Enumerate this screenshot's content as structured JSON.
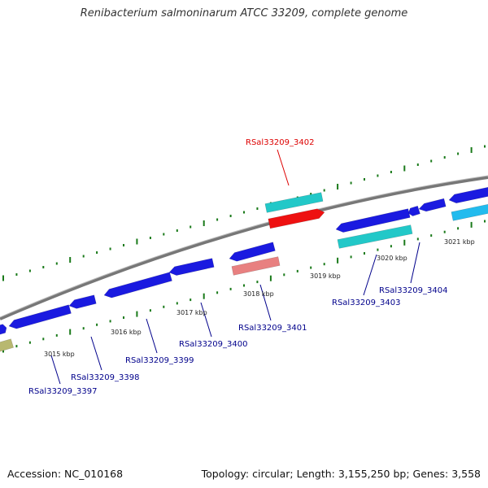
{
  "title": "Renibacterium salmoninarum ATCC 33209, complete genome",
  "footer": {
    "accession": "Accession: NC_010168",
    "topology": "Topology: circular; Length: 3,155,250 bp; Genes: 3,558"
  },
  "colors": {
    "cds_forward": "#1a1ae0",
    "cds_reverse": "#1a1ae0",
    "rna": "#22c8c8",
    "rrna_highlight": "#ee1111",
    "pseudo": "#e88080",
    "other": "#b8b870",
    "light_blue": "#22bbee",
    "backbone": "#888888",
    "tick": "#1a7a1a",
    "label_highlight": "#dd0000",
    "label": "#00008b"
  },
  "scale": {
    "unit": "kbp",
    "ticks": [
      {
        "label": "3015 kbp"
      },
      {
        "label": "3016 kbp"
      },
      {
        "label": "3017 kbp"
      },
      {
        "label": "3018 kbp"
      },
      {
        "label": "3019 kbp"
      },
      {
        "label": "3020 kbp"
      },
      {
        "label": "3021 kbp"
      }
    ]
  },
  "gene_labels": [
    {
      "name": "RSal33209_3402",
      "highlight": true
    },
    {
      "name": "RSal33209_3404",
      "highlight": false
    },
    {
      "name": "RSal33209_3403",
      "highlight": false
    },
    {
      "name": "RSal33209_3401",
      "highlight": false
    },
    {
      "name": "RSal33209_3400",
      "highlight": false
    },
    {
      "name": "RSal33209_3399",
      "highlight": false
    },
    {
      "name": "RSal33209_3398",
      "highlight": false
    },
    {
      "name": "RSal33209_3397",
      "highlight": false
    }
  ]
}
